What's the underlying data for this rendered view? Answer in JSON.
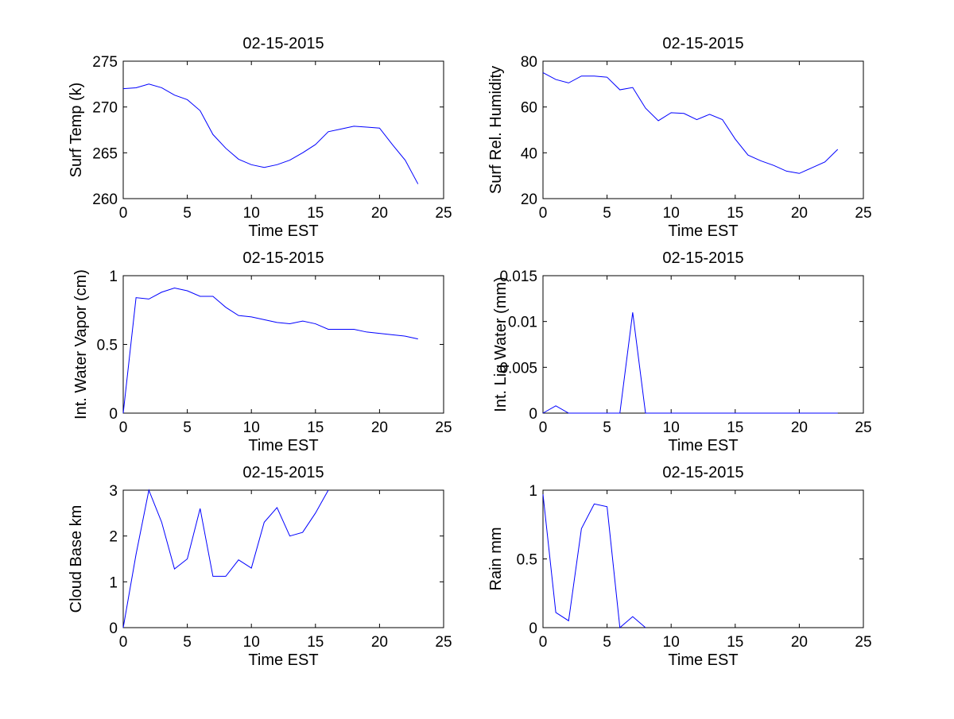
{
  "chart_data": [
    {
      "type": "line",
      "title": "02-15-2015",
      "xlabel": "Time EST",
      "ylabel": "Surf Temp (k)",
      "xlim": [
        0,
        25
      ],
      "ylim": [
        260,
        275
      ],
      "xticks": [
        0,
        5,
        10,
        15,
        20,
        25
      ],
      "yticks": [
        260,
        265,
        270,
        275
      ],
      "grid": false,
      "line_color": "#0000ff",
      "x": [
        0,
        1,
        2,
        3,
        4,
        5,
        6,
        7,
        8,
        9,
        10,
        11,
        12,
        13,
        14,
        15,
        16,
        17,
        18,
        19,
        20,
        21,
        22,
        23
      ],
      "y": [
        272.0,
        272.1,
        272.5,
        272.1,
        271.3,
        270.8,
        269.6,
        267.0,
        265.5,
        264.3,
        263.7,
        263.4,
        263.7,
        264.2,
        265.0,
        265.9,
        267.3,
        267.6,
        267.9,
        267.8,
        267.7,
        265.9,
        264.2,
        261.6
      ]
    },
    {
      "type": "line",
      "title": "02-15-2015",
      "xlabel": "Time EST",
      "ylabel": "Surf Rel. Humidity",
      "xlim": [
        0,
        25
      ],
      "ylim": [
        20,
        80
      ],
      "xticks": [
        0,
        5,
        10,
        15,
        20,
        25
      ],
      "yticks": [
        20,
        40,
        60,
        80
      ],
      "grid": false,
      "line_color": "#0000ff",
      "x": [
        0,
        1,
        2,
        3,
        4,
        5,
        6,
        7,
        8,
        9,
        10,
        11,
        12,
        13,
        14,
        15,
        16,
        17,
        18,
        19,
        20,
        21,
        22,
        23
      ],
      "y": [
        75.0,
        72.0,
        70.5,
        73.5,
        73.5,
        73.0,
        67.5,
        68.5,
        59.5,
        54.0,
        57.5,
        57.2,
        54.5,
        56.8,
        54.5,
        46.0,
        39.0,
        36.5,
        34.5,
        32.0,
        31.0,
        33.5,
        36.0,
        41.5
      ]
    },
    {
      "type": "line",
      "title": "02-15-2015",
      "xlabel": "Time EST",
      "ylabel": "Int. Water Vapor (cm)",
      "xlim": [
        0,
        25
      ],
      "ylim": [
        0,
        1
      ],
      "xticks": [
        0,
        5,
        10,
        15,
        20,
        25
      ],
      "yticks": [
        0,
        0.5,
        1
      ],
      "grid": false,
      "line_color": "#0000ff",
      "x": [
        0,
        1,
        2,
        3,
        4,
        5,
        6,
        7,
        8,
        9,
        10,
        11,
        12,
        13,
        14,
        15,
        16,
        17,
        18,
        19,
        20,
        21,
        22,
        23
      ],
      "y": [
        0.0,
        0.84,
        0.83,
        0.88,
        0.91,
        0.89,
        0.85,
        0.85,
        0.77,
        0.71,
        0.7,
        0.68,
        0.66,
        0.65,
        0.67,
        0.65,
        0.61,
        0.61,
        0.61,
        0.59,
        0.58,
        0.57,
        0.56,
        0.54
      ]
    },
    {
      "type": "line",
      "title": "02-15-2015",
      "xlabel": "Time EST",
      "ylabel": "Int. Liq Water (mm)",
      "xlim": [
        0,
        25
      ],
      "ylim": [
        0,
        0.015
      ],
      "xticks": [
        0,
        5,
        10,
        15,
        20,
        25
      ],
      "yticks": [
        0,
        0.005,
        0.01,
        0.015
      ],
      "grid": false,
      "line_color": "#0000ff",
      "x": [
        0,
        1,
        2,
        3,
        4,
        5,
        6,
        7,
        8,
        9,
        10,
        11,
        12,
        13,
        14,
        15,
        16,
        17,
        18,
        19,
        20,
        21,
        22,
        23
      ],
      "y": [
        0.0,
        0.0008,
        0.0,
        0.0,
        0.0,
        0.0,
        0.0,
        0.011,
        0.0,
        0.0,
        0.0,
        0.0,
        0.0,
        0.0,
        0.0,
        0.0,
        0.0,
        0.0,
        0.0,
        0.0,
        0.0,
        0.0,
        0.0,
        0.0
      ]
    },
    {
      "type": "line",
      "title": "02-15-2015",
      "xlabel": "Time EST",
      "ylabel": "Cloud Base km",
      "xlim": [
        0,
        25
      ],
      "ylim": [
        0,
        3
      ],
      "xticks": [
        0,
        5,
        10,
        15,
        20,
        25
      ],
      "yticks": [
        0,
        1,
        2,
        3
      ],
      "grid": false,
      "line_color": "#0000ff",
      "x": [
        0,
        1,
        2,
        3,
        4,
        5,
        6,
        7,
        8,
        9,
        10,
        11,
        12,
        13,
        14,
        15,
        16
      ],
      "y": [
        0.0,
        1.6,
        3.0,
        2.3,
        1.28,
        1.5,
        2.6,
        1.12,
        1.12,
        1.48,
        1.3,
        2.3,
        2.62,
        2.0,
        2.08,
        2.5,
        3.0
      ]
    },
    {
      "type": "line",
      "title": "02-15-2015",
      "xlabel": "Time EST",
      "ylabel": "Rain mm",
      "xlim": [
        0,
        25
      ],
      "ylim": [
        0,
        1
      ],
      "xticks": [
        0,
        5,
        10,
        15,
        20,
        25
      ],
      "yticks": [
        0,
        0.5,
        1
      ],
      "grid": false,
      "line_color": "#0000ff",
      "x": [
        0,
        1,
        2,
        3,
        4,
        5,
        6,
        7,
        8
      ],
      "y": [
        0.97,
        0.11,
        0.05,
        0.72,
        0.9,
        0.88,
        0.0,
        0.08,
        0.0
      ]
    }
  ]
}
